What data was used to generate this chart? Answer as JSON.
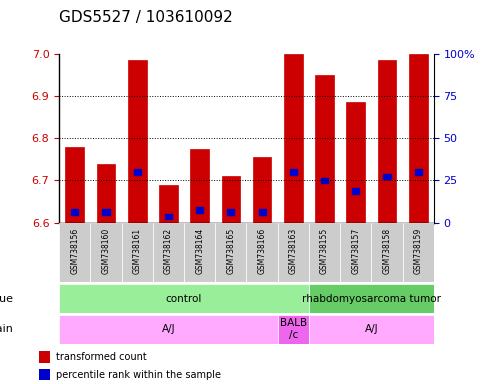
{
  "title": "GDS5527 / 103610092",
  "samples": [
    "GSM738156",
    "GSM738160",
    "GSM738161",
    "GSM738162",
    "GSM738164",
    "GSM738165",
    "GSM738166",
    "GSM738163",
    "GSM738155",
    "GSM738157",
    "GSM738158",
    "GSM738159"
  ],
  "bar_tops": [
    6.78,
    6.74,
    6.985,
    6.69,
    6.775,
    6.71,
    6.755,
    7.0,
    6.95,
    6.885,
    6.985,
    7.0
  ],
  "bar_base": 6.6,
  "blue_values": [
    6.625,
    6.625,
    6.72,
    6.615,
    6.63,
    6.625,
    6.625,
    6.72,
    6.7,
    6.675,
    6.71,
    6.72
  ],
  "ylim": [
    6.6,
    7.0
  ],
  "yticks": [
    6.6,
    6.7,
    6.8,
    6.9,
    7.0
  ],
  "right_yticks": [
    0,
    25,
    50,
    75,
    100
  ],
  "right_ylabels": [
    "0",
    "25",
    "50",
    "75",
    "100%"
  ],
  "bar_color": "#cc0000",
  "blue_color": "#0000cc",
  "grid_color": "#000000",
  "tissue_groups": [
    {
      "label": "control",
      "start": 0,
      "end": 8,
      "color": "#99ee99"
    },
    {
      "label": "rhabdomyosarcoma tumor",
      "start": 8,
      "end": 12,
      "color": "#66cc66"
    }
  ],
  "strain_groups": [
    {
      "label": "A/J",
      "start": 0,
      "end": 7,
      "color": "#ffaaff"
    },
    {
      "label": "BALB\n/c",
      "start": 7,
      "end": 8,
      "color": "#ee66ee"
    },
    {
      "label": "A/J",
      "start": 8,
      "end": 12,
      "color": "#ffaaff"
    }
  ],
  "left_label_color": "#cc0000",
  "right_label_color": "#0000cc",
  "title_fontsize": 11,
  "bar_width": 0.6,
  "tick_fontsize": 8,
  "sample_label_color": "#cccccc"
}
